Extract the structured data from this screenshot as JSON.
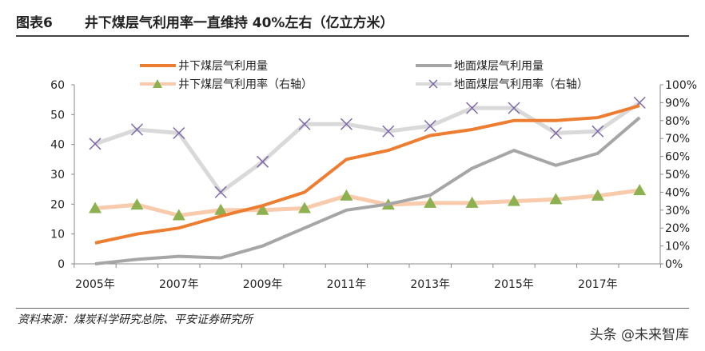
{
  "header": {
    "figure_no": "图表6",
    "title": "井下煤层气利用率一直维持 40%左右（亿立方米）"
  },
  "footer": {
    "source": "资料来源：煤炭科学研究总院、平安证券研究所",
    "watermark": "头条 @未来智库"
  },
  "chart_data": {
    "type": "line",
    "categories": [
      "2005",
      "2006",
      "2007",
      "2008",
      "2009",
      "2010",
      "2011",
      "2012",
      "2013",
      "2014",
      "2015",
      "2016",
      "2017",
      "2018"
    ],
    "x_tick_labels": [
      "2005年",
      "2007年",
      "2009年",
      "2011年",
      "2013年",
      "2015年",
      "2017年"
    ],
    "y_left": {
      "range": [
        0,
        60
      ],
      "ticks": [
        "0",
        "10",
        "20",
        "30",
        "40",
        "50",
        "60"
      ]
    },
    "y_right": {
      "range": [
        0,
        100
      ],
      "ticks": [
        "0%",
        "10%",
        "20%",
        "30%",
        "40%",
        "50%",
        "60%",
        "70%",
        "80%",
        "90%",
        "100%"
      ]
    },
    "legend_position": "top",
    "series": [
      {
        "name": "井下煤层气利用量",
        "axis": "left",
        "color": "#ED7D31",
        "marker": "none",
        "values": [
          7,
          10,
          12,
          16,
          19.5,
          24,
          35,
          38,
          43,
          45,
          48,
          48,
          49,
          53
        ]
      },
      {
        "name": "地面煤层气利用量",
        "axis": "left",
        "color": "#A6A6A6",
        "marker": "none",
        "values": [
          0,
          1.5,
          2.5,
          2,
          6,
          12,
          18,
          20,
          23,
          32,
          38,
          33,
          37,
          49
        ]
      },
      {
        "name": "井下煤层气利用率（右轴）",
        "axis": "right",
        "color": "#F8CBAD",
        "marker": "triangle",
        "marker_color": "#8DB151",
        "values": [
          31,
          33,
          27,
          30,
          30,
          31,
          38,
          33,
          34,
          34,
          35,
          36,
          38,
          41
        ]
      },
      {
        "name": "地面煤层气利用率（右轴）",
        "axis": "right",
        "color": "#D9D9D9",
        "marker": "x",
        "marker_color": "#7E69A8",
        "values": [
          67,
          75,
          73,
          40,
          57,
          78,
          78,
          74,
          77,
          87,
          87,
          73,
          74,
          90
        ]
      }
    ]
  }
}
